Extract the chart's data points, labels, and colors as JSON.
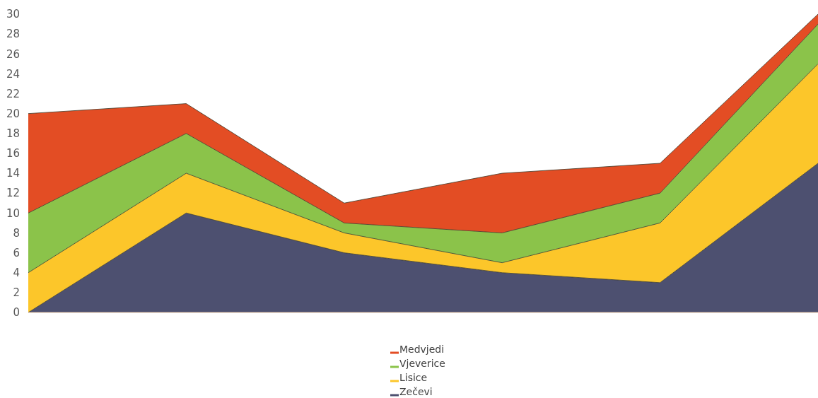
{
  "chart_data": {
    "type": "area",
    "stacked": true,
    "categories": [
      null,
      null,
      null,
      null,
      null,
      null
    ],
    "series": [
      {
        "name": "Zečevi",
        "color": "#4d5070",
        "values": [
          0,
          10,
          6,
          4,
          3,
          15
        ]
      },
      {
        "name": "Lisice",
        "color": "#fcc62a",
        "values": [
          4,
          4,
          2,
          1,
          6,
          10
        ]
      },
      {
        "name": "Vjeverice",
        "color": "#8bc34a",
        "values": [
          6,
          4,
          1,
          3,
          3,
          4
        ]
      },
      {
        "name": "Medvjedi",
        "color": "#e34d24",
        "values": [
          10,
          3,
          2,
          6,
          3,
          1
        ]
      }
    ],
    "ylim": [
      0,
      30
    ],
    "yticks": [
      0,
      2,
      4,
      6,
      8,
      10,
      12,
      14,
      16,
      18,
      20,
      22,
      24,
      26,
      28,
      30
    ],
    "legend": "bottom",
    "tick_labels": "y"
  }
}
